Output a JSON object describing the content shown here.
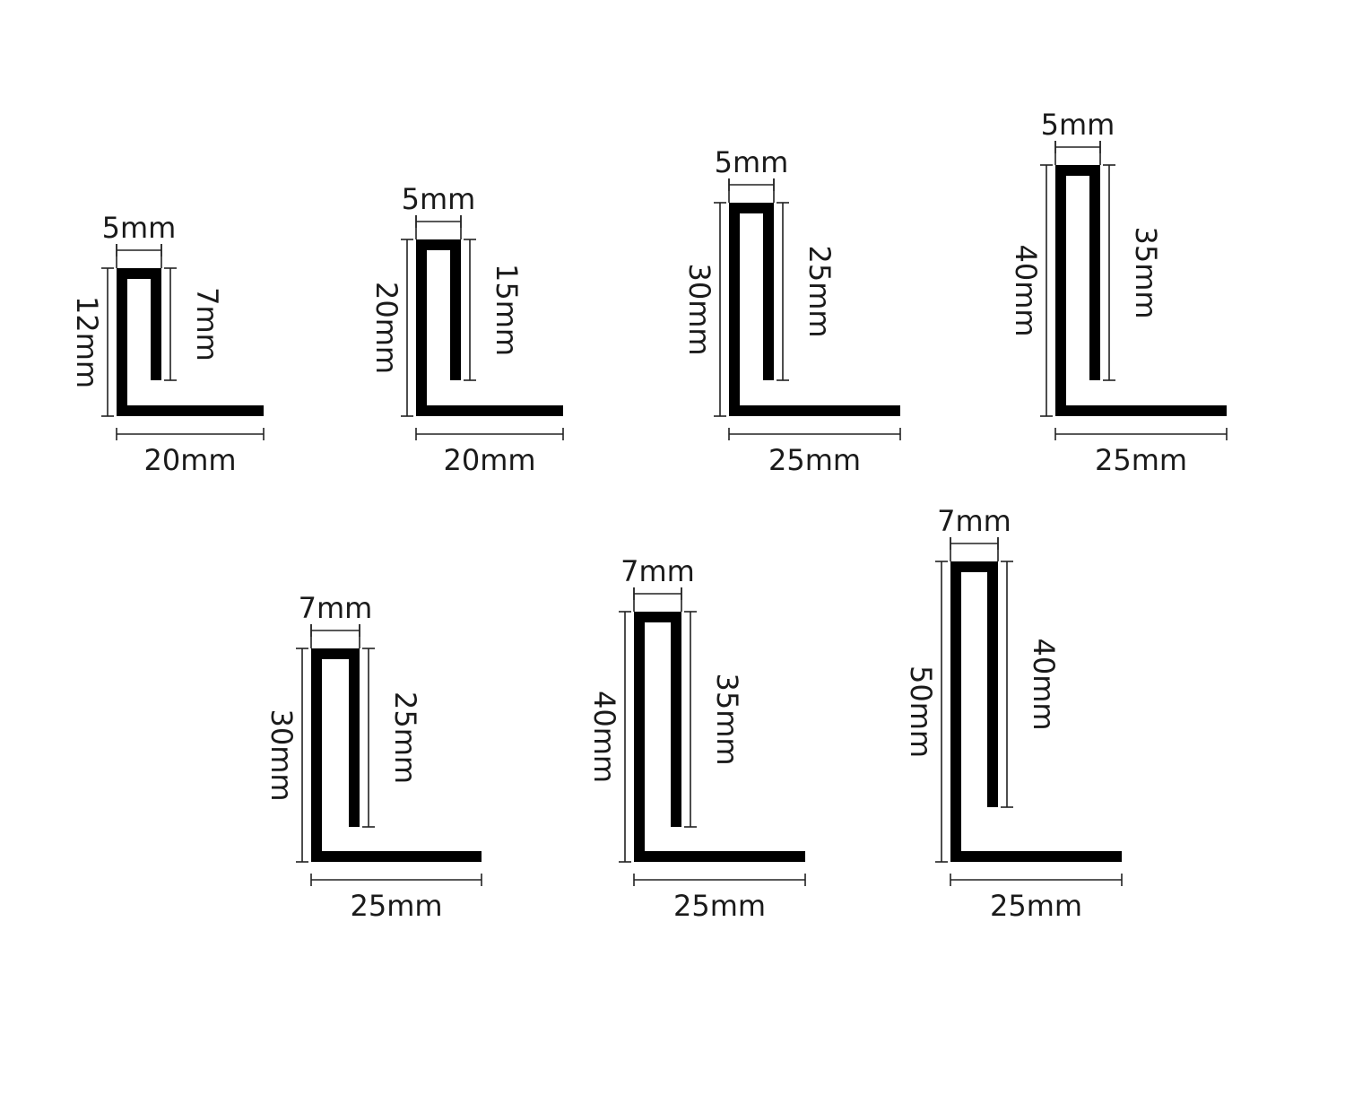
{
  "colors": {
    "profile": "#000000",
    "dimension": "#222222",
    "text": "#1a1a1a",
    "background": "#ffffff"
  },
  "profiles": [
    {
      "lip_width": "5mm",
      "inner_height": "7mm",
      "outer_height": "12mm",
      "base_length": "20mm"
    },
    {
      "lip_width": "5mm",
      "inner_height": "15mm",
      "outer_height": "20mm",
      "base_length": "20mm"
    },
    {
      "lip_width": "5mm",
      "inner_height": "25mm",
      "outer_height": "30mm",
      "base_length": "25mm"
    },
    {
      "lip_width": "5mm",
      "inner_height": "35mm",
      "outer_height": "40mm",
      "base_length": "25mm"
    },
    {
      "lip_width": "7mm",
      "inner_height": "25mm",
      "outer_height": "30mm",
      "base_length": "25mm"
    },
    {
      "lip_width": "7mm",
      "inner_height": "35mm",
      "outer_height": "40mm",
      "base_length": "25mm"
    },
    {
      "lip_width": "7mm",
      "inner_height": "40mm",
      "outer_height": "50mm",
      "base_length": "25mm"
    }
  ]
}
